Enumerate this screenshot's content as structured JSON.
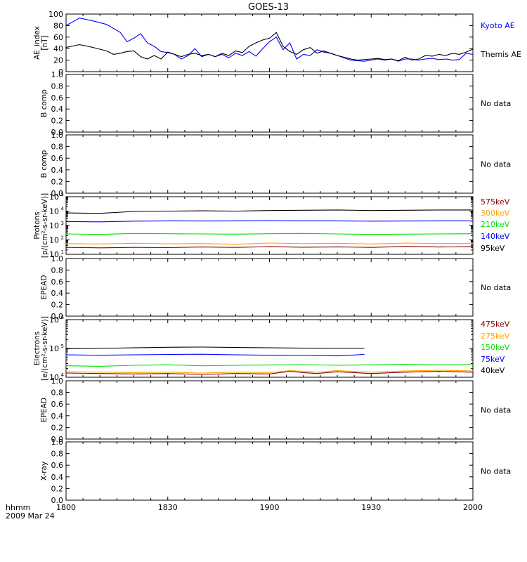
{
  "title": "GOES-13",
  "time_axis": {
    "ticks": [
      "1800",
      "1830",
      "1900",
      "1930",
      "2000"
    ],
    "caption_line1": "hhmm",
    "caption_line2": "2009 Mar 24"
  },
  "colors": {
    "black": "#000000",
    "blue": "#0000ff",
    "green": "#00e000",
    "orange": "#ffa500",
    "darkred": "#8b0000"
  },
  "no_data_text": "No data",
  "chart_data": [
    {
      "type": "line",
      "ylabel": [
        "AE_index",
        "[nT]"
      ],
      "x_range": [
        0,
        120
      ],
      "x_unit": "minutes after 1800 UT",
      "ylim": [
        0,
        100
      ],
      "yticks": [
        "0",
        "20",
        "40",
        "60",
        "80",
        "100"
      ],
      "series": [
        {
          "name": "Kyoto AE",
          "color": "blue",
          "x": [
            0,
            4,
            8,
            12,
            14,
            16,
            18,
            20,
            22,
            24,
            26,
            28,
            30,
            32,
            34,
            36,
            38,
            40,
            42,
            44,
            46,
            48,
            50,
            52,
            54,
            56,
            58,
            60,
            62,
            64,
            66,
            68,
            70,
            72,
            74,
            76,
            78,
            80,
            82,
            84,
            86,
            88,
            90,
            92,
            94,
            96,
            98,
            100,
            102,
            104,
            106,
            108,
            110,
            112,
            114,
            116,
            118,
            120
          ],
          "values": [
            80,
            93,
            88,
            82,
            75,
            68,
            52,
            58,
            66,
            50,
            44,
            35,
            33,
            30,
            22,
            28,
            40,
            26,
            30,
            26,
            30,
            24,
            32,
            28,
            35,
            27,
            40,
            52,
            60,
            38,
            50,
            22,
            30,
            28,
            38,
            34,
            32,
            28,
            24,
            20,
            19,
            18,
            20,
            22,
            20,
            22,
            18,
            22,
            22,
            20,
            22,
            23,
            21,
            22,
            20,
            21,
            32,
            30
          ]
        },
        {
          "name": "Themis AE",
          "color": "black",
          "x": [
            0,
            4,
            8,
            12,
            14,
            16,
            18,
            20,
            22,
            24,
            26,
            28,
            30,
            32,
            34,
            36,
            38,
            40,
            42,
            44,
            46,
            48,
            50,
            52,
            54,
            56,
            58,
            60,
            62,
            64,
            66,
            68,
            70,
            72,
            74,
            76,
            78,
            80,
            82,
            84,
            86,
            88,
            90,
            92,
            94,
            96,
            98,
            100,
            102,
            104,
            106,
            108,
            110,
            112,
            114,
            116,
            118,
            120
          ],
          "values": [
            42,
            47,
            42,
            36,
            30,
            32,
            35,
            36,
            26,
            22,
            28,
            22,
            34,
            30,
            26,
            30,
            32,
            28,
            30,
            26,
            32,
            28,
            36,
            33,
            44,
            50,
            55,
            58,
            68,
            44,
            35,
            30,
            38,
            42,
            32,
            36,
            32,
            28,
            25,
            22,
            20,
            21,
            22,
            23,
            21,
            22,
            19,
            25,
            20,
            22,
            28,
            27,
            30,
            28,
            32,
            30,
            34,
            39
          ]
        }
      ]
    },
    {
      "type": "line",
      "ylabel": [
        "B comp"
      ],
      "ylim": [
        0,
        1
      ],
      "yticks": [
        "0.0",
        "0.2",
        "0.4",
        "0.6",
        "0.8",
        "1.0"
      ],
      "no_data": true
    },
    {
      "type": "line",
      "ylabel": [
        "B comp"
      ],
      "ylim": [
        0,
        1
      ],
      "yticks": [
        "0.0",
        "0.2",
        "0.4",
        "0.6",
        "0.8",
        "1.0"
      ],
      "no_data": true
    },
    {
      "type": "line",
      "ylabel": [
        "Protons",
        "[p/(cm²-s-sr-keV)]"
      ],
      "log_scale": true,
      "ylim": [
        10,
        100000
      ],
      "yticks": [
        "10¹",
        "10²",
        "10³",
        "10⁴",
        "10⁵"
      ],
      "x_range": [
        0,
        120
      ],
      "series": [
        {
          "name": "575keV",
          "color": "darkred",
          "x": [
            0,
            10,
            20,
            30,
            40,
            50,
            60,
            70,
            80,
            90,
            100,
            110,
            120
          ],
          "values": [
            30,
            28,
            30,
            29,
            32,
            30,
            34,
            31,
            33,
            30,
            35,
            32,
            34
          ]
        },
        {
          "name": "300keV",
          "color": "orange",
          "x": [
            0,
            10,
            20,
            30,
            40,
            50,
            60,
            70,
            80,
            90,
            100,
            110,
            120
          ],
          "values": [
            55,
            52,
            58,
            54,
            56,
            50,
            60,
            55,
            58,
            52,
            60,
            56,
            58
          ]
        },
        {
          "name": "210keV",
          "color": "green",
          "x": [
            0,
            10,
            20,
            30,
            40,
            50,
            60,
            70,
            80,
            90,
            100,
            110,
            120
          ],
          "values": [
            260,
            240,
            280,
            270,
            260,
            250,
            270,
            280,
            260,
            240,
            250,
            260,
            270
          ]
        },
        {
          "name": "140keV",
          "color": "blue",
          "x": [
            0,
            10,
            20,
            30,
            40,
            50,
            60,
            70,
            80,
            90,
            100,
            110,
            120
          ],
          "values": [
            1900,
            1800,
            2000,
            2100,
            2050,
            2100,
            2200,
            2100,
            2100,
            2000,
            2050,
            2100,
            2100
          ]
        },
        {
          "name": "95keV",
          "color": "black",
          "x": [
            0,
            10,
            20,
            30,
            40,
            50,
            60,
            70,
            80,
            90,
            100,
            110,
            120
          ],
          "values": [
            7500,
            7000,
            9500,
            10000,
            10500,
            10000,
            11000,
            11500,
            12000,
            11000,
            11500,
            12000,
            12000
          ]
        }
      ]
    },
    {
      "type": "line",
      "ylabel": [
        "EPEAD"
      ],
      "ylim": [
        0,
        1
      ],
      "yticks": [
        "0.0",
        "0.2",
        "0.4",
        "0.6",
        "0.8",
        "1.0"
      ],
      "no_data": true
    },
    {
      "type": "line",
      "ylabel": [
        "Electrons",
        "[e/(cm²-s-sr-keV)]"
      ],
      "log_scale": true,
      "ylim": [
        10000,
        1000000
      ],
      "yticks": [
        "10⁴",
        "10⁵",
        "10⁶"
      ],
      "x_range": [
        0,
        120
      ],
      "series": [
        {
          "name": "475keV",
          "color": "darkred",
          "x": [
            0,
            10,
            20,
            30,
            40,
            50,
            60,
            66,
            70,
            74,
            80,
            90,
            100,
            110,
            120
          ],
          "values": [
            14000,
            13500,
            13000,
            13500,
            12500,
            13500,
            13000,
            16000,
            14500,
            13500,
            15500,
            13500,
            15000,
            16000,
            15000
          ]
        },
        {
          "name": "275keV",
          "color": "orange",
          "x": [
            0,
            10,
            20,
            30,
            40,
            50,
            60,
            66,
            70,
            74,
            80,
            90,
            100,
            110,
            120
          ],
          "values": [
            15500,
            15000,
            14500,
            15000,
            14000,
            15000,
            14500,
            17000,
            16000,
            15000,
            17000,
            15000,
            16500,
            17500,
            16500
          ]
        },
        {
          "name": "150keV",
          "color": "green",
          "x": [
            0,
            10,
            20,
            30,
            40,
            50,
            60,
            70,
            80,
            90,
            100,
            110,
            120
          ],
          "values": [
            25000,
            24000,
            26000,
            27000,
            25000,
            26000,
            26500,
            27500,
            26000,
            27000,
            28000,
            27000,
            27500
          ]
        },
        {
          "name": "75keV",
          "color": "blue",
          "x": [
            0,
            10,
            20,
            30,
            40,
            50,
            60,
            70,
            80,
            88
          ],
          "values": [
            60000,
            58000,
            60000,
            62000,
            63000,
            60000,
            58000,
            57000,
            55000,
            62000
          ]
        },
        {
          "name": "40keV",
          "color": "black",
          "x": [
            0,
            10,
            20,
            30,
            40,
            50,
            60,
            70,
            80,
            88
          ],
          "values": [
            98000,
            100000,
            105000,
            110000,
            112000,
            108000,
            105000,
            102000,
            100000,
            100000
          ]
        }
      ]
    },
    {
      "type": "line",
      "ylabel": [
        "EPEAD"
      ],
      "ylim": [
        0,
        1
      ],
      "yticks": [
        "0.0",
        "0.2",
        "0.4",
        "0.6",
        "0.8",
        "1.0"
      ],
      "no_data": true
    },
    {
      "type": "line",
      "ylabel": [
        "X-ray"
      ],
      "ylim": [
        0,
        1
      ],
      "yticks": [
        "0.0",
        "0.2",
        "0.4",
        "0.6",
        "0.8",
        "1.0"
      ],
      "no_data": true
    }
  ]
}
